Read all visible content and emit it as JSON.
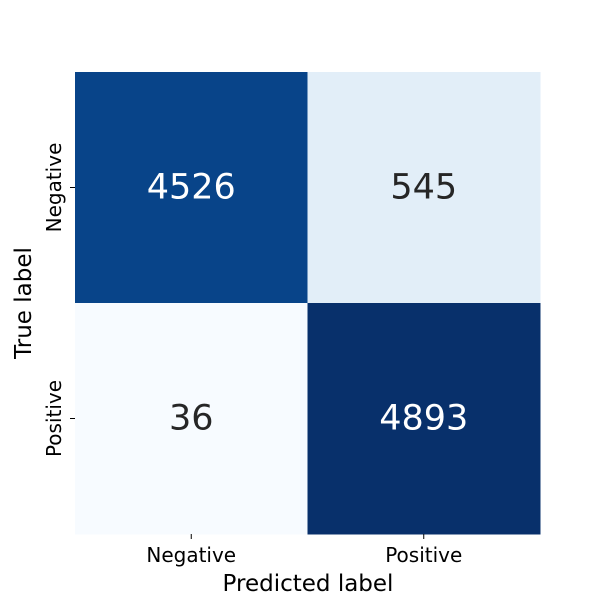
{
  "chart_data": {
    "type": "heatmap",
    "title": "",
    "xlabel": "Predicted label",
    "ylabel": "True label",
    "x_categories": [
      "Negative",
      "Positive"
    ],
    "y_categories": [
      "Negative",
      "Positive"
    ],
    "values": [
      [
        4526,
        545
      ],
      [
        36,
        4893
      ]
    ],
    "colormap": "Blues",
    "colorbar": false,
    "grid": false
  }
}
